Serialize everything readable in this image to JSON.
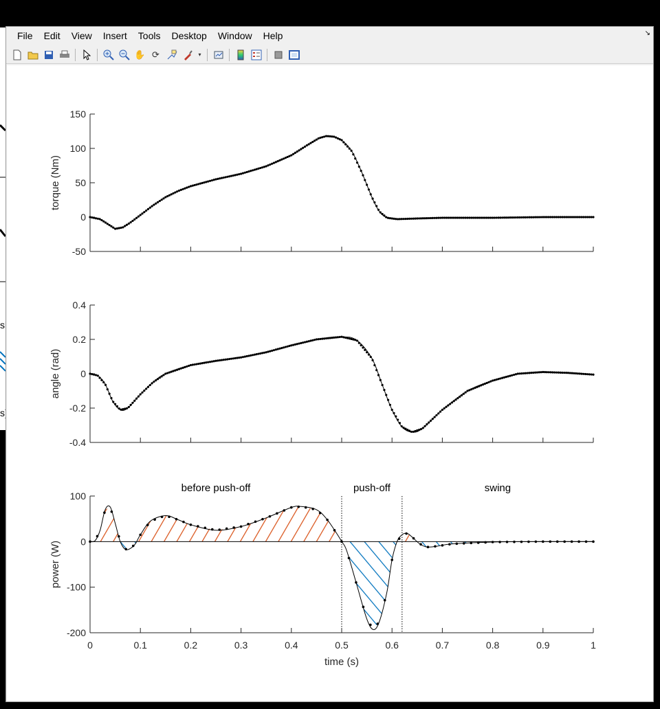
{
  "back_window": {
    "fragments": [
      "sl",
      "s)"
    ]
  },
  "menubar": {
    "items": [
      "File",
      "Edit",
      "View",
      "Insert",
      "Tools",
      "Desktop",
      "Window",
      "Help"
    ]
  },
  "toolbar": {
    "icons": [
      "new-figure-icon",
      "open-file-icon",
      "save-icon",
      "print-icon",
      "pointer-icon",
      "zoom-in-icon",
      "zoom-out-icon",
      "pan-hand-icon",
      "rotate-3d-icon",
      "data-cursor-icon",
      "brush-icon",
      "link-plot-icon",
      "colorbar-icon",
      "legend-icon",
      "hide-plot-tools-icon",
      "show-plot-tools-icon"
    ]
  },
  "colors": {
    "positive_hatch": "#D95319",
    "negative_hatch": "#0072BD",
    "markers": "#000000"
  },
  "chart_data": [
    {
      "type": "scatter",
      "ylabel": "torque (Nm)",
      "xlim": [
        0,
        1
      ],
      "ylim": [
        -50,
        150
      ],
      "yticks": [
        -50,
        0,
        50,
        100,
        150
      ],
      "yticklabels": [
        "-50",
        "0",
        "50",
        "100",
        "150"
      ],
      "xticks": [
        0,
        0.1,
        0.2,
        0.3,
        0.4,
        0.5,
        0.6,
        0.7,
        0.8,
        0.9,
        1
      ],
      "points": [
        [
          0,
          0
        ],
        [
          0.02,
          -3
        ],
        [
          0.035,
          -10
        ],
        [
          0.05,
          -17
        ],
        [
          0.065,
          -15
        ],
        [
          0.08,
          -8
        ],
        [
          0.1,
          3
        ],
        [
          0.125,
          17
        ],
        [
          0.15,
          29
        ],
        [
          0.175,
          38
        ],
        [
          0.2,
          45
        ],
        [
          0.25,
          55
        ],
        [
          0.3,
          63
        ],
        [
          0.35,
          74
        ],
        [
          0.4,
          90
        ],
        [
          0.43,
          104
        ],
        [
          0.455,
          115
        ],
        [
          0.47,
          118
        ],
        [
          0.485,
          117
        ],
        [
          0.5,
          112
        ],
        [
          0.52,
          96
        ],
        [
          0.54,
          65
        ],
        [
          0.56,
          29
        ],
        [
          0.575,
          8
        ],
        [
          0.59,
          -1
        ],
        [
          0.61,
          -3
        ],
        [
          0.65,
          -2
        ],
        [
          0.7,
          -1
        ],
        [
          0.8,
          -1
        ],
        [
          0.9,
          0
        ],
        [
          1,
          0
        ]
      ]
    },
    {
      "type": "scatter",
      "ylabel": "angle (rad)",
      "xlim": [
        0,
        1
      ],
      "ylim": [
        -0.4,
        0.4
      ],
      "yticks": [
        -0.4,
        -0.2,
        0,
        0.2,
        0.4
      ],
      "yticklabels": [
        "-0.4",
        "-0.2",
        "0",
        "0.2",
        "0.4"
      ],
      "xticks": [
        0,
        0.1,
        0.2,
        0.3,
        0.4,
        0.5,
        0.6,
        0.7,
        0.8,
        0.9,
        1
      ],
      "points": [
        [
          0,
          0
        ],
        [
          0.015,
          -0.01
        ],
        [
          0.03,
          -0.06
        ],
        [
          0.045,
          -0.16
        ],
        [
          0.06,
          -0.21
        ],
        [
          0.075,
          -0.2
        ],
        [
          0.1,
          -0.12
        ],
        [
          0.125,
          -0.05
        ],
        [
          0.15,
          0
        ],
        [
          0.2,
          0.05
        ],
        [
          0.25,
          0.075
        ],
        [
          0.3,
          0.095
        ],
        [
          0.35,
          0.125
        ],
        [
          0.4,
          0.165
        ],
        [
          0.45,
          0.2
        ],
        [
          0.5,
          0.215
        ],
        [
          0.53,
          0.195
        ],
        [
          0.56,
          0.09
        ],
        [
          0.58,
          -0.06
        ],
        [
          0.6,
          -0.21
        ],
        [
          0.62,
          -0.31
        ],
        [
          0.64,
          -0.34
        ],
        [
          0.66,
          -0.32
        ],
        [
          0.7,
          -0.21
        ],
        [
          0.75,
          -0.1
        ],
        [
          0.8,
          -0.04
        ],
        [
          0.85,
          0.0
        ],
        [
          0.9,
          0.01
        ],
        [
          0.95,
          0.005
        ],
        [
          1,
          -0.005
        ]
      ]
    },
    {
      "type": "scatter",
      "ylabel": "power (W)",
      "xlabel": "time (s)",
      "xlim": [
        0,
        1
      ],
      "ylim": [
        -200,
        100
      ],
      "yticks": [
        -200,
        -100,
        0,
        100
      ],
      "yticklabels": [
        "-200",
        "-100",
        "0",
        "100"
      ],
      "xticks": [
        0,
        0.1,
        0.2,
        0.3,
        0.4,
        0.5,
        0.6,
        0.7,
        0.8,
        0.9,
        1
      ],
      "xticklabels": [
        "0",
        "0.1",
        "0.2",
        "0.3",
        "0.4",
        "0.5",
        "0.6",
        "0.7",
        "0.8",
        "0.9",
        "1"
      ],
      "phase_lines": [
        0.5,
        0.62
      ],
      "annotations": [
        {
          "text": "before push-off",
          "x": 0.25
        },
        {
          "text": "push-off",
          "x": 0.56
        },
        {
          "text": "swing",
          "x": 0.81
        }
      ],
      "points": [
        [
          0,
          0
        ],
        [
          0.01,
          2
        ],
        [
          0.02,
          25
        ],
        [
          0.03,
          70
        ],
        [
          0.04,
          76
        ],
        [
          0.05,
          40
        ],
        [
          0.06,
          0
        ],
        [
          0.07,
          -17
        ],
        [
          0.08,
          -15
        ],
        [
          0.09,
          -5
        ],
        [
          0.1,
          15
        ],
        [
          0.12,
          45
        ],
        [
          0.15,
          57
        ],
        [
          0.175,
          48
        ],
        [
          0.2,
          37
        ],
        [
          0.25,
          25
        ],
        [
          0.3,
          33
        ],
        [
          0.35,
          52
        ],
        [
          0.4,
          75
        ],
        [
          0.42,
          77
        ],
        [
          0.45,
          70
        ],
        [
          0.47,
          50
        ],
        [
          0.49,
          18
        ],
        [
          0.5,
          0
        ],
        [
          0.51,
          -20
        ],
        [
          0.53,
          -95
        ],
        [
          0.55,
          -170
        ],
        [
          0.563,
          -193
        ],
        [
          0.575,
          -175
        ],
        [
          0.59,
          -110
        ],
        [
          0.6,
          -40
        ],
        [
          0.61,
          0
        ],
        [
          0.62,
          15
        ],
        [
          0.63,
          18
        ],
        [
          0.64,
          10
        ],
        [
          0.655,
          -5
        ],
        [
          0.67,
          -12
        ],
        [
          0.69,
          -10
        ],
        [
          0.72,
          -5
        ],
        [
          0.8,
          -1
        ],
        [
          0.9,
          0
        ],
        [
          1,
          0
        ]
      ]
    }
  ]
}
